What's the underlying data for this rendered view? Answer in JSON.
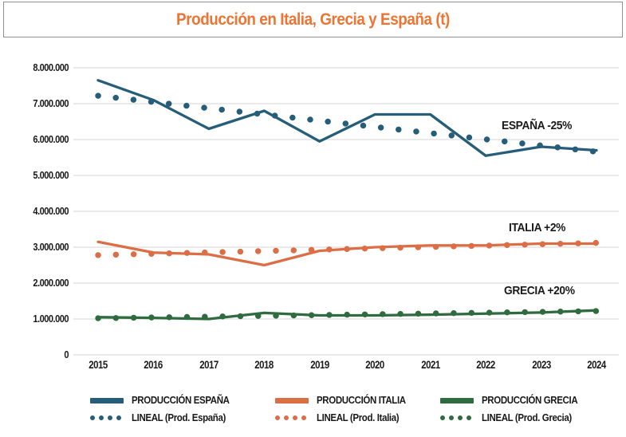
{
  "title": "Producción en Italia, Grecia y España (t)",
  "colors": {
    "title_accent": "#ee7433",
    "espana": "#265d79",
    "italia": "#dc6e45",
    "grecia": "#2e6b3e",
    "gridline": "#dedede",
    "axis_text": "#1a1a1a"
  },
  "chart_data": {
    "type": "line",
    "title": "Producción en Italia, Grecia y España (t)",
    "x": [
      "2015",
      "2016",
      "2017",
      "2018",
      "2019",
      "2020",
      "2021",
      "2022",
      "2023",
      "2024"
    ],
    "yticks": [
      "8.000.000",
      "7.000.000",
      "6.000.000",
      "5.000.000",
      "4.000.000",
      "3.000.000",
      "2.000.000",
      "1.000.000",
      "0"
    ],
    "ylim": [
      0,
      8000000
    ],
    "grid": true,
    "legend_position": "bottom",
    "series": [
      {
        "name": "PRODUCCIÓN ESPAÑA",
        "color": "#265d79",
        "annotation": "ESPAÑA -25%",
        "values": [
          7650000,
          7100000,
          6300000,
          6800000,
          5950000,
          6700000,
          6700000,
          5550000,
          5800000,
          5700000
        ]
      },
      {
        "name": "PRODUCCIÓN ITALIA",
        "color": "#dc6e45",
        "annotation": "ITALIA +2%",
        "values": [
          3150000,
          2850000,
          2800000,
          2500000,
          2900000,
          3000000,
          3050000,
          3050000,
          3100000,
          3100000
        ]
      },
      {
        "name": "PRODUCCIÓN GRECIA",
        "color": "#2e6b3e",
        "annotation": "GRECIA +20%",
        "values": [
          1050000,
          1030000,
          1000000,
          1170000,
          1100000,
          1100000,
          1120000,
          1150000,
          1180000,
          1240000
        ]
      }
    ],
    "trend_series": [
      {
        "name": "LINEAL (Prod. España)",
        "style": "dotted",
        "start": 7220000,
        "end": 5660000
      },
      {
        "name": "LINEAL (Prod. Italia)",
        "style": "dotted",
        "start": 2780000,
        "end": 3120000
      },
      {
        "name": "LINEAL (Prod. Grecia)",
        "style": "dotted",
        "start": 1020000,
        "end": 1220000
      }
    ]
  }
}
